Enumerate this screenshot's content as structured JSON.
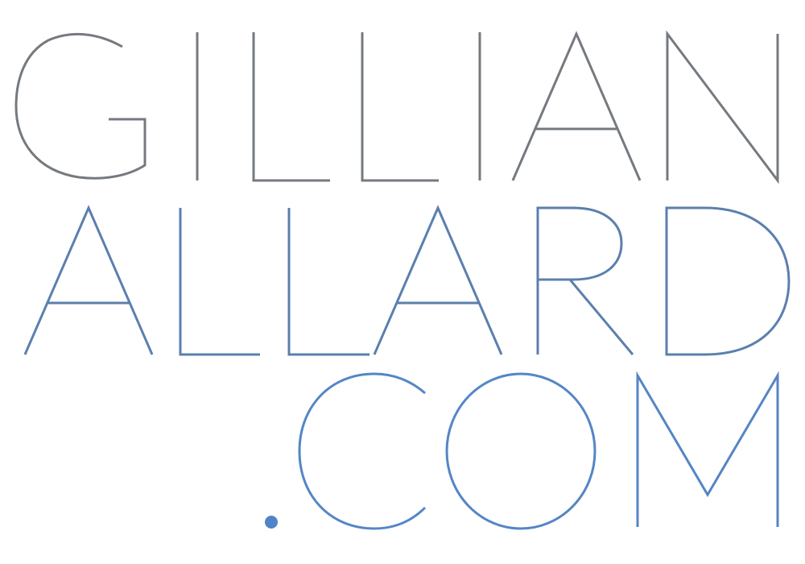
{
  "logo": {
    "line1": "GILLIAN",
    "line2": "ALLARD",
    "line3": ".COM",
    "full_text": "GILLIAN ALLARD.COM"
  },
  "colors": {
    "line1": "#757a80",
    "line2": "#5b7fae",
    "line3": "#5585c6",
    "dot": "#4f84c9",
    "background": "#ffffff"
  }
}
